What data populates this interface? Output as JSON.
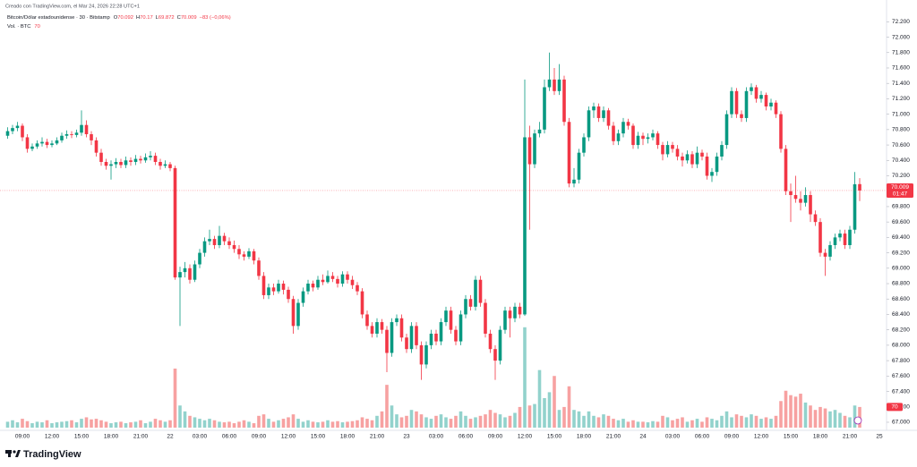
{
  "header": {
    "created": "Creado con TradingView.com, el Mar 24, 2026 22:28 UTC+1",
    "volume_label": "Vol. · BTC"
  },
  "logo": "TradingView",
  "chart_data": {
    "type": "candlestick",
    "title": "Bitcoin/Dólar estadounidense · 30 · Bitstamp",
    "ohlc_letters": [
      "O",
      "H",
      "L",
      "C"
    ],
    "change_label": "−83 (−0,06%)",
    "countdown": "01:47",
    "up_color": "#089981",
    "down_color": "#f23645",
    "volume_up_color": "#92d2cc",
    "volume_down_color": "#f7a1a1",
    "ylim": [
      66.93,
      72.32
    ],
    "yticks": [
      {
        "value": 72.2,
        "label": "72.200"
      },
      {
        "value": 72,
        "label": "72.000"
      },
      {
        "value": 71.8,
        "label": "71.800"
      },
      {
        "value": 71.6,
        "label": "71.600"
      },
      {
        "value": 71.4,
        "label": "71.400"
      },
      {
        "value": 71.2,
        "label": "71.200"
      },
      {
        "value": 71,
        "label": "71.000"
      },
      {
        "value": 70.8,
        "label": "70.800"
      },
      {
        "value": 70.6,
        "label": "70.600"
      },
      {
        "value": 70.4,
        "label": "70.400"
      },
      {
        "value": 70.2,
        "label": "70.200"
      },
      {
        "value": 70,
        "label": "70.000"
      },
      {
        "value": 69.8,
        "label": "69.800"
      },
      {
        "value": 69.6,
        "label": "69.600"
      },
      {
        "value": 69.4,
        "label": "69.400"
      },
      {
        "value": 69.2,
        "label": "69.200"
      },
      {
        "value": 69,
        "label": "69.000"
      },
      {
        "value": 68.8,
        "label": "68.800"
      },
      {
        "value": 68.6,
        "label": "68.600"
      },
      {
        "value": 68.4,
        "label": "68.400"
      },
      {
        "value": 68.2,
        "label": "68.200"
      },
      {
        "value": 68,
        "label": "68.000"
      },
      {
        "value": 67.8,
        "label": "67.800"
      },
      {
        "value": 67.6,
        "label": "67.600"
      },
      {
        "value": 67.4,
        "label": "67.400"
      },
      {
        "value": 67.2,
        "label": "67.200"
      },
      {
        "value": 67,
        "label": "67.000"
      }
    ],
    "categories": [
      null,
      null,
      null,
      "09:00",
      null,
      null,
      null,
      null,
      null,
      "12:00",
      null,
      null,
      null,
      null,
      null,
      "15:00",
      null,
      null,
      null,
      null,
      null,
      "18:00",
      null,
      null,
      null,
      null,
      null,
      "21:00",
      null,
      null,
      null,
      null,
      null,
      "22",
      null,
      null,
      null,
      null,
      null,
      "03:00",
      null,
      null,
      null,
      null,
      null,
      "06:00",
      null,
      null,
      null,
      null,
      null,
      "09:00",
      null,
      null,
      null,
      null,
      null,
      "12:00",
      null,
      null,
      null,
      null,
      null,
      "15:00",
      null,
      null,
      null,
      null,
      null,
      "18:00",
      null,
      null,
      null,
      null,
      null,
      "21:00",
      null,
      null,
      null,
      null,
      null,
      "23",
      null,
      null,
      null,
      null,
      null,
      "03:00",
      null,
      null,
      null,
      null,
      null,
      "06:00",
      null,
      null,
      null,
      null,
      null,
      "09:00",
      null,
      null,
      null,
      null,
      null,
      "12:00",
      null,
      null,
      null,
      null,
      null,
      "15:00",
      null,
      null,
      null,
      null,
      null,
      "18:00",
      null,
      null,
      null,
      null,
      null,
      "21:00",
      null,
      null,
      null,
      null,
      null,
      "24",
      null,
      null,
      null,
      null,
      null,
      "03:00",
      null,
      null,
      null,
      null,
      null,
      "06:00",
      null,
      null,
      null,
      null,
      null,
      "09:00",
      null,
      null,
      null,
      null,
      null,
      "12:00",
      null,
      null,
      null,
      null,
      null,
      "15:00",
      null,
      null,
      null,
      null,
      null,
      "18:00",
      null,
      null,
      null,
      null,
      null,
      "21:00",
      null,
      null,
      null,
      null,
      null,
      "25"
    ],
    "candles": [
      [
        70.72,
        70.83,
        70.68,
        70.78
      ],
      [
        70.78,
        70.86,
        70.74,
        70.82
      ],
      [
        70.82,
        70.9,
        70.78,
        70.85
      ],
      [
        70.85,
        70.88,
        70.65,
        70.7
      ],
      [
        70.7,
        70.74,
        70.5,
        70.55
      ],
      [
        70.55,
        70.62,
        70.52,
        70.58
      ],
      [
        70.58,
        70.66,
        70.55,
        70.62
      ],
      [
        70.62,
        70.7,
        70.58,
        70.64
      ],
      [
        70.64,
        70.68,
        70.56,
        70.6
      ],
      [
        70.6,
        70.66,
        70.57,
        70.62
      ],
      [
        70.62,
        70.7,
        70.6,
        70.66
      ],
      [
        70.66,
        70.76,
        70.63,
        70.72
      ],
      [
        70.72,
        70.79,
        70.68,
        70.74
      ],
      [
        70.74,
        70.78,
        70.69,
        70.73
      ],
      [
        70.73,
        70.8,
        70.7,
        70.76
      ],
      [
        70.76,
        71.05,
        70.72,
        70.86
      ],
      [
        70.86,
        70.92,
        70.7,
        70.74
      ],
      [
        70.74,
        70.78,
        70.6,
        70.66
      ],
      [
        70.66,
        70.7,
        70.45,
        70.5
      ],
      [
        70.5,
        70.55,
        70.33,
        70.38
      ],
      [
        70.38,
        70.42,
        70.28,
        70.33
      ],
      [
        70.33,
        70.4,
        70.15,
        70.35
      ],
      [
        70.35,
        70.43,
        70.3,
        70.38
      ],
      [
        70.38,
        70.42,
        70.3,
        70.34
      ],
      [
        70.34,
        70.45,
        70.3,
        70.4
      ],
      [
        70.4,
        70.44,
        70.33,
        70.38
      ],
      [
        70.38,
        70.47,
        70.34,
        70.42
      ],
      [
        70.42,
        70.46,
        70.36,
        70.4
      ],
      [
        70.4,
        70.49,
        70.37,
        70.44
      ],
      [
        70.44,
        70.52,
        70.4,
        70.46
      ],
      [
        70.46,
        70.5,
        70.34,
        70.38
      ],
      [
        70.38,
        70.42,
        70.28,
        70.33
      ],
      [
        70.33,
        70.4,
        70.3,
        70.35
      ],
      [
        70.35,
        70.38,
        70.26,
        70.3
      ],
      [
        70.3,
        70.33,
        68.85,
        68.88
      ],
      [
        68.88,
        69.02,
        68.25,
        68.95
      ],
      [
        68.95,
        69.08,
        68.88,
        69.0
      ],
      [
        69.0,
        69.05,
        68.8,
        68.85
      ],
      [
        68.85,
        69.1,
        68.82,
        69.05
      ],
      [
        69.05,
        69.25,
        69.0,
        69.2
      ],
      [
        69.2,
        69.4,
        69.15,
        69.35
      ],
      [
        69.35,
        69.5,
        69.3,
        69.38
      ],
      [
        69.38,
        69.42,
        69.25,
        69.3
      ],
      [
        69.3,
        69.55,
        69.26,
        69.42
      ],
      [
        69.42,
        69.46,
        69.3,
        69.35
      ],
      [
        69.35,
        69.4,
        69.25,
        69.3
      ],
      [
        69.3,
        69.36,
        69.2,
        69.25
      ],
      [
        69.25,
        69.3,
        69.12,
        69.18
      ],
      [
        69.18,
        69.22,
        69.1,
        69.15
      ],
      [
        69.15,
        69.26,
        69.12,
        69.22
      ],
      [
        69.22,
        69.25,
        69.05,
        69.1
      ],
      [
        69.1,
        69.14,
        68.85,
        68.9
      ],
      [
        68.9,
        68.95,
        68.6,
        68.65
      ],
      [
        68.65,
        68.8,
        68.6,
        68.75
      ],
      [
        68.75,
        68.8,
        68.65,
        68.7
      ],
      [
        68.7,
        68.85,
        68.67,
        68.8
      ],
      [
        68.8,
        68.84,
        68.66,
        68.72
      ],
      [
        68.72,
        68.76,
        68.55,
        68.6
      ],
      [
        68.6,
        68.64,
        68.15,
        68.25
      ],
      [
        68.25,
        68.6,
        68.2,
        68.55
      ],
      [
        68.55,
        68.75,
        68.5,
        68.7
      ],
      [
        68.7,
        68.85,
        68.66,
        68.8
      ],
      [
        68.8,
        68.84,
        68.7,
        68.75
      ],
      [
        68.75,
        68.9,
        68.72,
        68.85
      ],
      [
        68.85,
        68.92,
        68.78,
        68.82
      ],
      [
        68.82,
        68.97,
        68.8,
        68.9
      ],
      [
        68.9,
        68.95,
        68.82,
        68.86
      ],
      [
        68.86,
        68.9,
        68.75,
        68.8
      ],
      [
        68.8,
        68.96,
        68.76,
        68.92
      ],
      [
        68.92,
        68.96,
        68.8,
        68.85
      ],
      [
        68.85,
        68.9,
        68.73,
        68.78
      ],
      [
        68.78,
        68.82,
        68.65,
        68.7
      ],
      [
        68.7,
        68.74,
        68.35,
        68.4
      ],
      [
        68.4,
        68.45,
        68.2,
        68.25
      ],
      [
        68.25,
        68.3,
        68.1,
        68.15
      ],
      [
        68.15,
        68.35,
        68.1,
        68.3
      ],
      [
        68.3,
        68.34,
        68.15,
        68.2
      ],
      [
        68.2,
        68.25,
        67.65,
        67.9
      ],
      [
        67.9,
        68.35,
        67.85,
        68.3
      ],
      [
        68.3,
        68.4,
        68.25,
        68.35
      ],
      [
        68.35,
        68.4,
        68.05,
        68.1
      ],
      [
        68.1,
        68.15,
        67.9,
        67.95
      ],
      [
        67.95,
        68.3,
        67.9,
        68.25
      ],
      [
        68.25,
        68.3,
        67.95,
        68.0
      ],
      [
        68.0,
        68.05,
        67.55,
        67.75
      ],
      [
        67.75,
        68.05,
        67.7,
        68.0
      ],
      [
        68.0,
        68.2,
        67.95,
        68.15
      ],
      [
        68.15,
        68.2,
        68.0,
        68.05
      ],
      [
        68.05,
        68.35,
        68.0,
        68.3
      ],
      [
        68.3,
        68.5,
        68.25,
        68.45
      ],
      [
        68.45,
        68.5,
        68.15,
        68.2
      ],
      [
        68.2,
        68.25,
        68.0,
        68.05
      ],
      [
        68.05,
        68.45,
        68.0,
        68.4
      ],
      [
        68.4,
        68.65,
        68.35,
        68.6
      ],
      [
        68.6,
        68.65,
        68.45,
        68.5
      ],
      [
        68.5,
        68.9,
        68.45,
        68.85
      ],
      [
        68.85,
        68.9,
        68.5,
        68.55
      ],
      [
        68.55,
        68.6,
        68.1,
        68.15
      ],
      [
        68.15,
        68.2,
        67.9,
        67.95
      ],
      [
        67.95,
        68.0,
        67.55,
        67.8
      ],
      [
        67.8,
        68.25,
        67.75,
        68.2
      ],
      [
        68.2,
        68.5,
        68.15,
        68.45
      ],
      [
        68.45,
        68.5,
        68.1,
        68.35
      ],
      [
        68.35,
        68.55,
        68.3,
        68.5
      ],
      [
        68.5,
        68.55,
        68.35,
        68.4
      ],
      [
        68.4,
        71.45,
        68.38,
        70.7
      ],
      [
        70.7,
        70.85,
        69.5,
        70.35
      ],
      [
        70.35,
        70.8,
        70.3,
        70.75
      ],
      [
        70.75,
        70.9,
        70.7,
        70.8
      ],
      [
        70.8,
        71.45,
        70.75,
        71.35
      ],
      [
        71.35,
        71.8,
        71.3,
        71.45
      ],
      [
        71.45,
        71.6,
        71.25,
        71.3
      ],
      [
        71.3,
        71.65,
        71.25,
        71.45
      ],
      [
        71.45,
        71.5,
        70.85,
        70.9
      ],
      [
        70.9,
        70.95,
        70.05,
        70.1
      ],
      [
        70.1,
        70.3,
        70.05,
        70.15
      ],
      [
        70.15,
        70.55,
        70.1,
        70.5
      ],
      [
        70.5,
        70.75,
        70.45,
        70.7
      ],
      [
        70.7,
        71.1,
        70.65,
        71.05
      ],
      [
        71.05,
        71.15,
        70.95,
        71.1
      ],
      [
        71.1,
        71.14,
        70.9,
        70.95
      ],
      [
        70.95,
        71.1,
        70.9,
        71.05
      ],
      [
        71.05,
        71.08,
        70.8,
        70.85
      ],
      [
        70.85,
        70.9,
        70.6,
        70.65
      ],
      [
        70.65,
        70.8,
        70.6,
        70.75
      ],
      [
        70.75,
        70.95,
        70.7,
        70.9
      ],
      [
        70.9,
        70.94,
        70.8,
        70.85
      ],
      [
        70.85,
        70.88,
        70.55,
        70.6
      ],
      [
        70.6,
        70.77,
        70.55,
        70.72
      ],
      [
        70.72,
        70.76,
        70.6,
        70.68
      ],
      [
        70.68,
        70.75,
        70.62,
        70.7
      ],
      [
        70.7,
        70.8,
        70.66,
        70.75
      ],
      [
        70.75,
        70.78,
        70.55,
        70.6
      ],
      [
        70.6,
        70.64,
        70.4,
        70.48
      ],
      [
        70.48,
        70.65,
        70.44,
        70.6
      ],
      [
        70.6,
        70.64,
        70.5,
        70.55
      ],
      [
        70.55,
        70.6,
        70.4,
        70.45
      ],
      [
        70.45,
        70.5,
        70.32,
        70.4
      ],
      [
        70.4,
        70.53,
        70.36,
        70.48
      ],
      [
        70.48,
        70.52,
        70.3,
        70.35
      ],
      [
        70.35,
        70.58,
        70.3,
        70.5
      ],
      [
        70.5,
        70.54,
        70.4,
        70.45
      ],
      [
        70.45,
        70.5,
        70.15,
        70.2
      ],
      [
        70.2,
        70.3,
        70.12,
        70.25
      ],
      [
        70.25,
        70.5,
        70.2,
        70.45
      ],
      [
        70.45,
        70.65,
        70.4,
        70.6
      ],
      [
        70.6,
        71.05,
        70.55,
        71.0
      ],
      [
        71.0,
        71.35,
        70.95,
        71.3
      ],
      [
        71.3,
        71.34,
        70.95,
        71.0
      ],
      [
        71.0,
        71.05,
        70.9,
        70.95
      ],
      [
        70.95,
        71.35,
        70.9,
        71.3
      ],
      [
        71.3,
        71.4,
        71.25,
        71.35
      ],
      [
        71.35,
        71.38,
        71.15,
        71.2
      ],
      [
        71.2,
        71.3,
        71.15,
        71.25
      ],
      [
        71.25,
        71.28,
        71.05,
        71.1
      ],
      [
        71.1,
        71.2,
        71.05,
        71.15
      ],
      [
        71.15,
        71.18,
        70.95,
        71.0
      ],
      [
        71.0,
        71.04,
        70.5,
        70.55
      ],
      [
        70.55,
        70.6,
        69.95,
        70.0
      ],
      [
        70.0,
        70.1,
        69.6,
        69.95
      ],
      [
        69.95,
        70.2,
        69.85,
        69.9
      ],
      [
        69.9,
        70.0,
        69.75,
        69.85
      ],
      [
        69.85,
        70.05,
        69.8,
        69.95
      ],
      [
        69.95,
        70.0,
        69.6,
        69.7
      ],
      [
        69.7,
        69.75,
        69.55,
        69.6
      ],
      [
        69.6,
        69.65,
        69.15,
        69.2
      ],
      [
        69.2,
        69.25,
        68.9,
        69.15
      ],
      [
        69.15,
        69.35,
        69.1,
        69.3
      ],
      [
        69.3,
        69.45,
        69.25,
        69.4
      ],
      [
        69.4,
        69.5,
        69.35,
        69.45
      ],
      [
        69.45,
        69.5,
        69.25,
        69.3
      ],
      [
        69.3,
        69.55,
        69.25,
        69.5
      ],
      [
        69.5,
        70.25,
        69.45,
        70.09
      ],
      [
        70.092,
        70.17,
        69.872,
        70.009
      ],
      null,
      null,
      null,
      null
    ],
    "volume": [
      20,
      25,
      18,
      30,
      22,
      15,
      20,
      18,
      25,
      15,
      18,
      20,
      22,
      25,
      18,
      30,
      35,
      28,
      30,
      25,
      20,
      15,
      18,
      20,
      15,
      18,
      20,
      25,
      15,
      20,
      30,
      25,
      20,
      25,
      200,
      75,
      55,
      40,
      35,
      30,
      25,
      30,
      25,
      20,
      18,
      20,
      15,
      20,
      25,
      20,
      15,
      40,
      45,
      30,
      20,
      25,
      30,
      35,
      45,
      30,
      20,
      25,
      20,
      18,
      20,
      25,
      20,
      22,
      18,
      20,
      22,
      25,
      35,
      30,
      25,
      40,
      55,
      145,
      75,
      45,
      35,
      40,
      60,
      55,
      45,
      35,
      30,
      40,
      45,
      35,
      30,
      40,
      55,
      40,
      30,
      35,
      40,
      45,
      60,
      50,
      45,
      35,
      40,
      50,
      70,
      340,
      75,
      80,
      195,
      100,
      120,
      175,
      60,
      70,
      140,
      60,
      55,
      40,
      55,
      40,
      35,
      45,
      40,
      30,
      25,
      30,
      20,
      25,
      20,
      20,
      18,
      22,
      20,
      40,
      35,
      25,
      30,
      35,
      20,
      25,
      30,
      20,
      35,
      30,
      25,
      40,
      55,
      35,
      45,
      40,
      35,
      45,
      40,
      30,
      35,
      30,
      40,
      90,
      125,
      110,
      105,
      115,
      85,
      75,
      60,
      70,
      65,
      55,
      60,
      50,
      40,
      35,
      75,
      70,
      null,
      null,
      null,
      null
    ]
  }
}
